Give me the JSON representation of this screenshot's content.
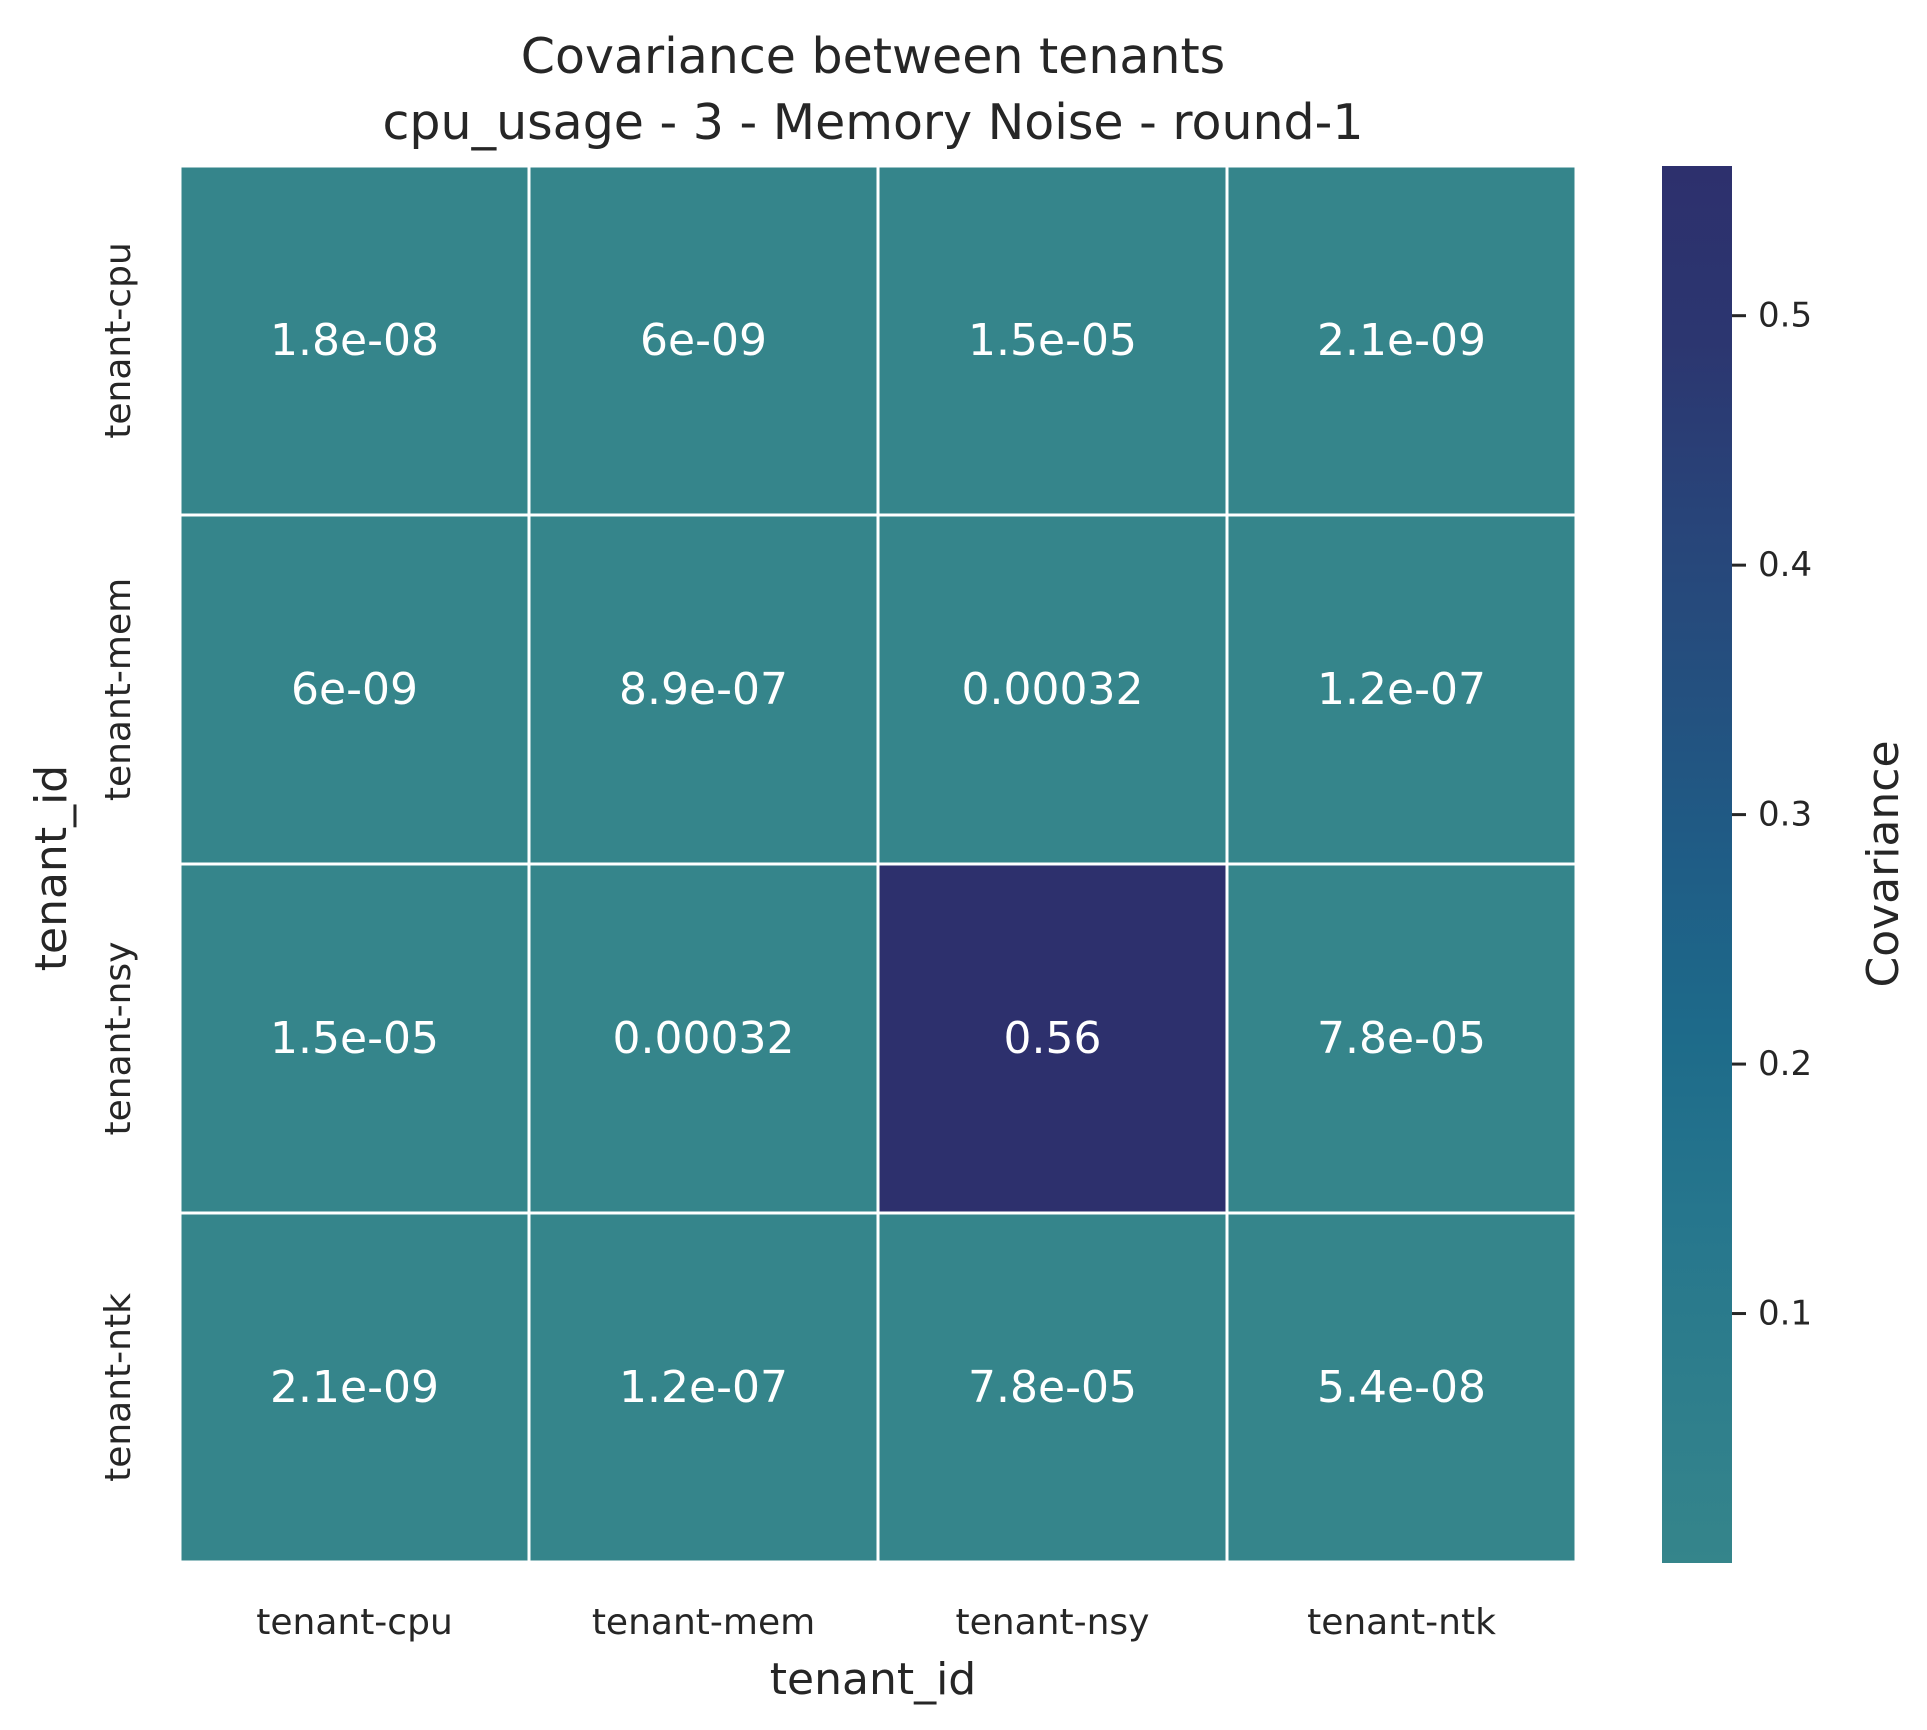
{
  "chart_data": {
    "type": "heatmap",
    "title": "Covariance between tenants",
    "subtitle": "cpu_usage - 3 - Memory Noise - round-1",
    "xlabel": "tenant_id",
    "ylabel": "tenant_id",
    "x_categories": [
      "tenant-cpu",
      "tenant-mem",
      "tenant-nsy",
      "tenant-ntk"
    ],
    "y_categories": [
      "tenant-cpu",
      "tenant-mem",
      "tenant-nsy",
      "tenant-ntk"
    ],
    "values": [
      [
        1.8e-08,
        6e-09,
        1.5e-05,
        2.1e-09
      ],
      [
        6e-09,
        8.9e-07,
        0.00032,
        1.2e-07
      ],
      [
        1.5e-05,
        0.00032,
        0.56,
        7.8e-05
      ],
      [
        2.1e-09,
        1.2e-07,
        7.8e-05,
        5.4e-08
      ]
    ],
    "value_labels": [
      [
        "1.8e-08",
        "6e-09",
        "1.5e-05",
        "2.1e-09"
      ],
      [
        "6e-09",
        "8.9e-07",
        "0.00032",
        "1.2e-07"
      ],
      [
        "1.5e-05",
        "0.00032",
        "0.56",
        "7.8e-05"
      ],
      [
        "2.1e-09",
        "1.2e-07",
        "7.8e-05",
        "5.4e-08"
      ]
    ],
    "colorbar": {
      "label": "Covariance",
      "range": [
        2.1e-09,
        0.56
      ],
      "ticks": [
        0.1,
        0.2,
        0.3,
        0.4,
        0.5
      ],
      "tick_labels": [
        "0.1",
        "0.2",
        "0.3",
        "0.4",
        "0.5"
      ]
    },
    "colormap": [
      "#35858b",
      "#2e7e8c",
      "#26768d",
      "#1e6b8a",
      "#1f5d86",
      "#24507f",
      "#284479",
      "#2c3670",
      "#2d306d"
    ],
    "grid_line_color": "#ffffff",
    "text_color": "#ffffff"
  }
}
